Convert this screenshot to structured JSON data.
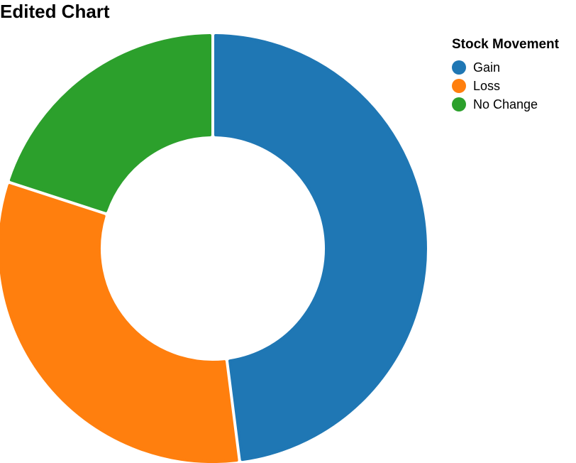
{
  "chart_data": {
    "type": "pie",
    "title": "Edited Chart",
    "legend_title": "Stock Movement",
    "legend_position": "top-right",
    "donut": true,
    "categories": [
      "Gain",
      "Loss",
      "No Change"
    ],
    "values": [
      48,
      32,
      20
    ],
    "colors": [
      "#1f77b4",
      "#ff7f0e",
      "#2ca02c"
    ]
  }
}
